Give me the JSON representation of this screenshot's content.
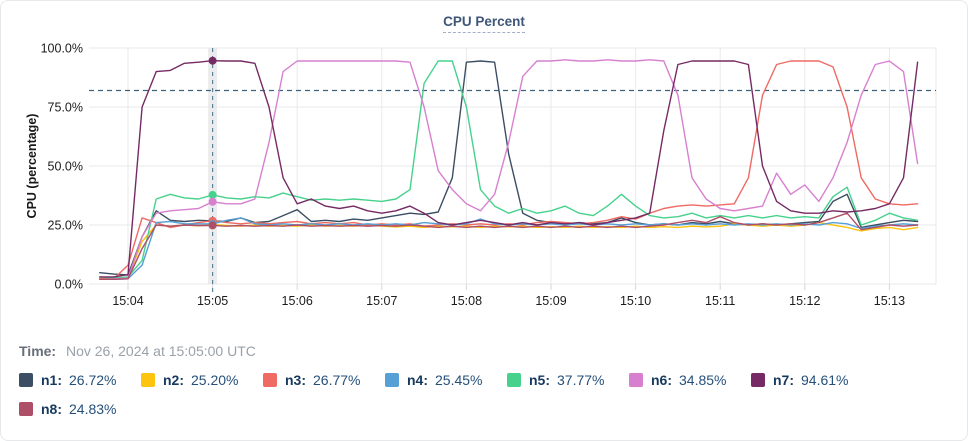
{
  "title": "CPU Percent",
  "time": {
    "label": "Time:",
    "value": "Nov 26, 2024 at 15:05:00 UTC"
  },
  "chart_data": {
    "type": "line",
    "title": "CPU Percent",
    "xlabel": "",
    "ylabel": "CPU (percentage)",
    "ylim": [
      0,
      100
    ],
    "grid": true,
    "legend_position": "bottom",
    "y_tick_values": [
      0,
      25,
      50,
      75,
      100
    ],
    "y_tick_labels": [
      "0.0%",
      "25.0%",
      "50.0%",
      "75.0%",
      "100.0%"
    ],
    "x_tick_minutes": [
      4,
      5,
      6,
      7,
      8,
      9,
      10,
      11,
      12,
      13
    ],
    "x_tick_labels": [
      "15:04",
      "15:05",
      "15:06",
      "15:07",
      "15:08",
      "15:09",
      "15:10",
      "15:11",
      "15:12",
      "15:13"
    ],
    "threshold": {
      "value": 82,
      "color": "#3f637b"
    },
    "cursor": {
      "minute": 5,
      "band_color": "#ececee",
      "line_color": "#5e8296"
    },
    "t0_minute": 3.6667,
    "dt_minute": 0.166667,
    "series": [
      {
        "name": "n1",
        "label": "n1:",
        "color": "#3c4e63",
        "cursor_value": 26.72,
        "cursor_label": "26.72%",
        "values": [
          4.8,
          4.2,
          3.8,
          20,
          31,
          27,
          26.5,
          27,
          26.72,
          26.5,
          28,
          26,
          26.5,
          29,
          31.5,
          26.5,
          27,
          26.5,
          27.5,
          27,
          28,
          29,
          30,
          29.5,
          30.5,
          45,
          94,
          94.5,
          94,
          55,
          30,
          27,
          26,
          25,
          26,
          25.5,
          26,
          28,
          26,
          25,
          25.5,
          25,
          26,
          25.5,
          26.5,
          25.5,
          25,
          25.5,
          25,
          25.5,
          26,
          26.5,
          35,
          38,
          24,
          25,
          26,
          27,
          26.5
        ]
      },
      {
        "name": "n2",
        "label": "n2:",
        "color": "#fcc40f",
        "cursor_value": 25.2,
        "cursor_label": "25.20%",
        "values": [
          2.5,
          2.2,
          2.5,
          18,
          25,
          24.5,
          25,
          24.6,
          25.2,
          24.8,
          24.5,
          25,
          24.5,
          24.8,
          24.5,
          25,
          24.5,
          24.8,
          24.5,
          25,
          24.5,
          24.2,
          24.5,
          24,
          24.5,
          24.2,
          24.5,
          24,
          24.5,
          24.2,
          24.5,
          24,
          24.3,
          24,
          24.5,
          24,
          24.3,
          24,
          24.5,
          24,
          24.3,
          24,
          24.5,
          24.2,
          24.5,
          25.5,
          25,
          24.5,
          25,
          24.5,
          25,
          26,
          25,
          24,
          22.5,
          23.5,
          24,
          23,
          24
        ]
      },
      {
        "name": "n3",
        "label": "n3:",
        "color": "#ee6a62",
        "cursor_value": 26.77,
        "cursor_label": "26.77%",
        "values": [
          2.2,
          2.3,
          8,
          28,
          26,
          24,
          25,
          26,
          26.77,
          26,
          25.5,
          26,
          25.5,
          26,
          26.5,
          25.5,
          26,
          25.5,
          26,
          25,
          25.5,
          25,
          25.5,
          24.5,
          25,
          25.5,
          25,
          25.5,
          25,
          25.5,
          25,
          26,
          26.5,
          26,
          25.5,
          26,
          27,
          28.5,
          27.5,
          30,
          32,
          33,
          33.5,
          33,
          33.5,
          34,
          45,
          80,
          93,
          94.5,
          94.5,
          94.5,
          92,
          75,
          45,
          36,
          34,
          33.5,
          34
        ]
      },
      {
        "name": "n4",
        "label": "n4:",
        "color": "#57a0d5",
        "cursor_value": 25.45,
        "cursor_label": "25.45%",
        "values": [
          2,
          2,
          2.2,
          8,
          26,
          26.5,
          25.5,
          25.5,
          25.45,
          27,
          28,
          25.5,
          25,
          25.5,
          25,
          25.5,
          25,
          25.5,
          25,
          25.5,
          25,
          25.5,
          25,
          26,
          25.5,
          25,
          25.5,
          27.5,
          25.5,
          25,
          25.5,
          25,
          25.5,
          25,
          25.5,
          25,
          25.5,
          25,
          25.5,
          25,
          25.5,
          25,
          25.5,
          25,
          25.5,
          25,
          25.5,
          25,
          25.5,
          25,
          25.5,
          25,
          26,
          25.5,
          23.5,
          24.5,
          25,
          25.5,
          25
        ]
      },
      {
        "name": "n5",
        "label": "n5:",
        "color": "#46d28d",
        "cursor_value": 37.77,
        "cursor_label": "37.77%",
        "values": [
          3,
          2.6,
          3,
          10,
          36,
          38,
          36.5,
          36,
          37.77,
          36.5,
          36,
          37,
          36.5,
          38.5,
          37,
          35.5,
          36,
          35.5,
          36,
          35.5,
          35,
          36,
          40,
          85,
          94.5,
          94.5,
          75,
          40,
          33,
          30,
          32,
          30,
          31,
          33,
          30,
          29,
          33,
          38,
          33,
          29,
          28,
          28.5,
          30,
          28,
          29,
          28,
          29,
          28,
          29,
          28,
          28.5,
          28,
          37,
          41,
          25,
          27,
          30,
          28,
          27
        ]
      },
      {
        "name": "n6",
        "label": "n6:",
        "color": "#d780cf",
        "cursor_value": 34.85,
        "cursor_label": "34.85%",
        "values": [
          2,
          2.2,
          2.5,
          20,
          30,
          31,
          31.5,
          32,
          34.85,
          34,
          34,
          36,
          60,
          90,
          94.5,
          94.5,
          94.5,
          94.5,
          94.5,
          94.5,
          94.5,
          94.5,
          94,
          75,
          48,
          40,
          34,
          31,
          38,
          60,
          88,
          94.5,
          94.5,
          95,
          94.5,
          94.5,
          95,
          94.5,
          94.5,
          95,
          94.5,
          80,
          45,
          36,
          32,
          31,
          32,
          33,
          47,
          38,
          42,
          35,
          45,
          60,
          80,
          93,
          94.5,
          90,
          51
        ]
      },
      {
        "name": "n7",
        "label": "n7:",
        "color": "#752a63",
        "cursor_value": 94.61,
        "cursor_label": "94.61%",
        "values": [
          3,
          3,
          4,
          75,
          90,
          90.5,
          93.5,
          94,
          94.61,
          94.5,
          94.5,
          93.5,
          75,
          45,
          34,
          36,
          33,
          32,
          33,
          31,
          30,
          31,
          33,
          30,
          26,
          25,
          26,
          27,
          26,
          25,
          26,
          25,
          26,
          25.5,
          26,
          25,
          26,
          27,
          28,
          30,
          65,
          93,
          94.5,
          94.5,
          94.5,
          94.5,
          93,
          50,
          35,
          31,
          30,
          30,
          31,
          30.5,
          31,
          32,
          34,
          45,
          94
        ]
      },
      {
        "name": "n8",
        "label": "n8:",
        "color": "#ad4f66",
        "cursor_value": 24.83,
        "cursor_label": "24.83%",
        "values": [
          2,
          2,
          2.2,
          15,
          25,
          24.5,
          25,
          24.8,
          24.83,
          24.5,
          24.8,
          24.5,
          24.8,
          24.5,
          25,
          24.5,
          24.8,
          24.5,
          24.8,
          24.5,
          24.8,
          24.5,
          25,
          24.5,
          24,
          24.5,
          24,
          24.5,
          24,
          24.5,
          24,
          24.5,
          24,
          24.5,
          24,
          24.5,
          24,
          24.5,
          24,
          24.5,
          25,
          26,
          27,
          26,
          28.5,
          26,
          25,
          25.5,
          25,
          25.5,
          25,
          26,
          28,
          30,
          23,
          24,
          25,
          24.5,
          25
        ]
      }
    ]
  }
}
